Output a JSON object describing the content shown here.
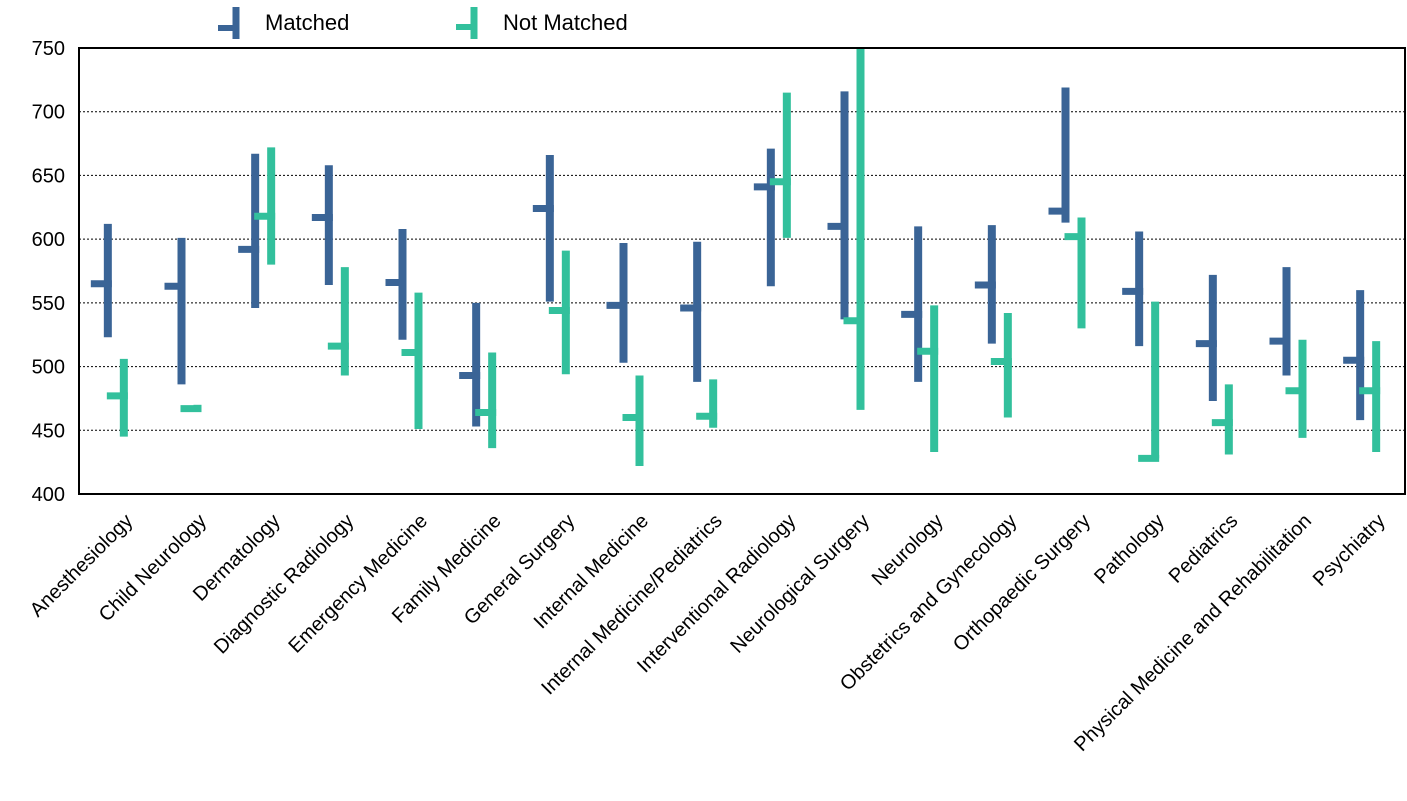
{
  "chart_data": {
    "type": "range-tick",
    "title": "",
    "xlabel": "",
    "ylabel": "",
    "ylim": [
      400,
      750
    ],
    "yticks": [
      400,
      450,
      500,
      550,
      600,
      650,
      700,
      750
    ],
    "grid": true,
    "legend_position": "top-left",
    "categories": [
      "Anesthesiology",
      "Child Neurology",
      "Dermatology",
      "Diagnostic Radiology",
      "Emergency Medicine",
      "Family Medicine",
      "General Surgery",
      "Internal Medicine",
      "Internal Medicine/Pediatrics",
      "Interventional Radiology",
      "Neurological Surgery",
      "Neurology",
      "Obstetrics and Gynecology",
      "Orthopaedic Surgery",
      "Pathology",
      "Pediatrics",
      "Physical Medicine and Rehabilitation",
      "Psychiatry"
    ],
    "series": [
      {
        "name": "Matched",
        "color": "#3A6496",
        "low": [
          523,
          486,
          546,
          564,
          521,
          453,
          551,
          503,
          488,
          563,
          537,
          488,
          518,
          613,
          516,
          473,
          493,
          458
        ],
        "high": [
          612,
          601,
          667,
          658,
          608,
          550,
          666,
          597,
          598,
          671,
          716,
          610,
          611,
          719,
          606,
          572,
          578,
          560
        ],
        "mid": [
          565,
          563,
          592,
          617,
          566,
          493,
          624,
          548,
          546,
          641,
          610,
          541,
          564,
          622,
          559,
          518,
          520,
          505
        ]
      },
      {
        "name": "Not Matched",
        "color": "#32C09C",
        "low": [
          445,
          467,
          580,
          493,
          451,
          436,
          494,
          422,
          452,
          601,
          466,
          433,
          460,
          530,
          428,
          431,
          444,
          433
        ],
        "high": [
          506,
          470,
          672,
          578,
          558,
          511,
          591,
          493,
          490,
          715,
          750,
          548,
          542,
          617,
          551,
          486,
          521,
          520
        ],
        "mid": [
          477,
          467,
          618,
          516,
          511,
          464,
          544,
          460,
          461,
          645,
          536,
          512,
          504,
          602,
          428,
          456,
          481,
          481
        ]
      }
    ]
  }
}
